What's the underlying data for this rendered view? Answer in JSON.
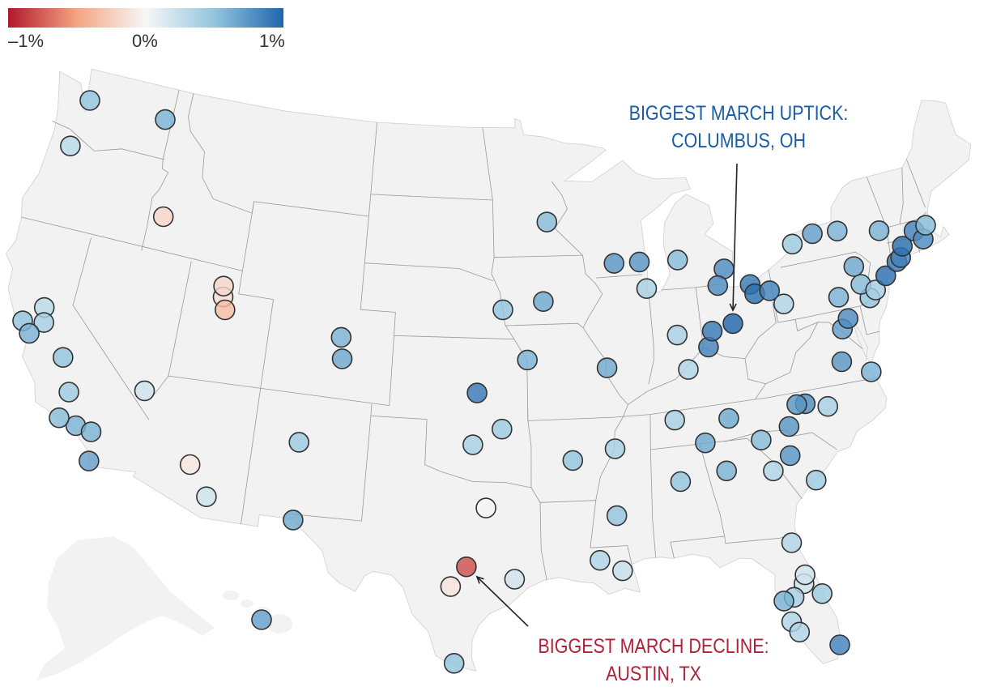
{
  "legend": {
    "min_label": "–1%",
    "mid_label": "0%",
    "max_label": "1%",
    "domain": [
      -1,
      0,
      1
    ],
    "colors": [
      "#b2182b",
      "#f4a582",
      "#f7f7f7",
      "#92c5de",
      "#2166ac"
    ]
  },
  "annotations": {
    "uptick": {
      "line1": "BIGGEST MARCH UPTICK:",
      "line2": "COLUMBUS, OH",
      "color": "#1a5da6"
    },
    "decline": {
      "line1": "BIGGEST MARCH DECLINE:",
      "line2": "AUSTIN, TX",
      "color": "#b3203a"
    }
  },
  "map": {
    "land_color": "#f2f2f2",
    "border_color": "#999999"
  },
  "metros": [
    {
      "name": "Seattle",
      "lon": -122.33,
      "lat": 47.61,
      "value": 0.5
    },
    {
      "name": "Spokane",
      "lon": -117.43,
      "lat": 47.66,
      "value": 0.6
    },
    {
      "name": "Portland",
      "lon": -122.68,
      "lat": 45.52,
      "value": 0.3
    },
    {
      "name": "Boise",
      "lon": -116.2,
      "lat": 43.62,
      "value": -0.2
    },
    {
      "name": "Salt Lake City",
      "lon": -111.89,
      "lat": 40.76,
      "value": -0.15
    },
    {
      "name": "Ogden",
      "lon": -111.97,
      "lat": 41.22,
      "value": -0.2
    },
    {
      "name": "Provo",
      "lon": -111.66,
      "lat": 40.23,
      "value": -0.35
    },
    {
      "name": "Sacramento",
      "lon": -121.49,
      "lat": 38.58,
      "value": 0.3
    },
    {
      "name": "Stockton",
      "lon": -121.29,
      "lat": 37.96,
      "value": 0.4
    },
    {
      "name": "San Francisco",
      "lon": -122.42,
      "lat": 37.77,
      "value": 0.5
    },
    {
      "name": "San Jose",
      "lon": -121.89,
      "lat": 37.34,
      "value": 0.6
    },
    {
      "name": "Fresno",
      "lon": -119.79,
      "lat": 36.74,
      "value": 0.5
    },
    {
      "name": "Bakersfield",
      "lon": -119.02,
      "lat": 35.37,
      "value": 0.45
    },
    {
      "name": "Los Angeles",
      "lon": -118.24,
      "lat": 34.05,
      "value": 0.6
    },
    {
      "name": "Riverside",
      "lon": -117.4,
      "lat": 33.95,
      "value": 0.6
    },
    {
      "name": "Oxnard",
      "lon": -119.18,
      "lat": 34.2,
      "value": 0.55
    },
    {
      "name": "San Diego",
      "lon": -117.16,
      "lat": 32.72,
      "value": 0.7
    },
    {
      "name": "Las Vegas",
      "lon": -115.14,
      "lat": 36.17,
      "value": 0.2
    },
    {
      "name": "Phoenix",
      "lon": -112.07,
      "lat": 33.45,
      "value": -0.1
    },
    {
      "name": "Tucson",
      "lon": -110.97,
      "lat": 32.22,
      "value": 0.2
    },
    {
      "name": "Denver",
      "lon": -104.99,
      "lat": 39.74,
      "value": 0.6
    },
    {
      "name": "Colorado Springs",
      "lon": -104.82,
      "lat": 38.83,
      "value": 0.65
    },
    {
      "name": "Albuquerque",
      "lon": -106.65,
      "lat": 35.08,
      "value": 0.45
    },
    {
      "name": "El Paso",
      "lon": -106.49,
      "lat": 31.76,
      "value": 0.65
    },
    {
      "name": "Wichita",
      "lon": -97.34,
      "lat": 37.69,
      "value": 0.9
    },
    {
      "name": "Oklahoma City",
      "lon": -97.52,
      "lat": 35.47,
      "value": 0.4
    },
    {
      "name": "Tulsa",
      "lon": -95.99,
      "lat": 36.15,
      "value": 0.45
    },
    {
      "name": "Dallas",
      "lon": -96.8,
      "lat": 32.78,
      "value": 0.02
    },
    {
      "name": "Austin",
      "lon": -97.74,
      "lat": 30.27,
      "value": -0.8
    },
    {
      "name": "San Antonio",
      "lon": -98.49,
      "lat": 29.42,
      "value": -0.12
    },
    {
      "name": "Houston",
      "lon": -95.37,
      "lat": 29.76,
      "value": 0.2
    },
    {
      "name": "McAllen",
      "lon": -98.23,
      "lat": 26.2,
      "value": 0.5
    },
    {
      "name": "Omaha",
      "lon": -95.93,
      "lat": 41.26,
      "value": 0.5
    },
    {
      "name": "Des Moines",
      "lon": -93.61,
      "lat": 41.59,
      "value": 0.65
    },
    {
      "name": "Minneapolis",
      "lon": -93.27,
      "lat": 44.98,
      "value": 0.55
    },
    {
      "name": "Kansas City",
      "lon": -94.58,
      "lat": 39.1,
      "value": 0.6
    },
    {
      "name": "Little Rock",
      "lon": -92.29,
      "lat": 34.75,
      "value": 0.5
    },
    {
      "name": "Madison",
      "lon": -89.4,
      "lat": 43.07,
      "value": 0.75
    },
    {
      "name": "Milwaukee",
      "lon": -87.91,
      "lat": 43.04,
      "value": 0.75
    },
    {
      "name": "Chicago",
      "lon": -87.63,
      "lat": 41.88,
      "value": 0.4
    },
    {
      "name": "St. Louis",
      "lon": -90.2,
      "lat": 38.63,
      "value": 0.65
    },
    {
      "name": "Memphis",
      "lon": -90.05,
      "lat": 35.15,
      "value": 0.4
    },
    {
      "name": "Jackson",
      "lon": -90.18,
      "lat": 32.3,
      "value": 0.5
    },
    {
      "name": "Baton Rouge",
      "lon": -91.15,
      "lat": 30.45,
      "value": 0.35
    },
    {
      "name": "New Orleans",
      "lon": -90.07,
      "lat": 29.95,
      "value": 0.25
    },
    {
      "name": "Grand Rapids",
      "lon": -85.67,
      "lat": 42.96,
      "value": 0.55
    },
    {
      "name": "Detroit",
      "lon": -83.05,
      "lat": 42.33,
      "value": 0.8
    },
    {
      "name": "Toledo",
      "lon": -83.54,
      "lat": 41.66,
      "value": 0.8
    },
    {
      "name": "Indianapolis",
      "lon": -86.16,
      "lat": 39.77,
      "value": 0.4
    },
    {
      "name": "Louisville",
      "lon": -85.76,
      "lat": 38.25,
      "value": 0.35
    },
    {
      "name": "Cincinnati",
      "lon": -84.51,
      "lat": 39.1,
      "value": 0.85
    },
    {
      "name": "Dayton",
      "lon": -84.19,
      "lat": 39.76,
      "value": 0.9
    },
    {
      "name": "Columbus",
      "lon": -82.99,
      "lat": 39.96,
      "value": 1.0
    },
    {
      "name": "Cleveland",
      "lon": -81.69,
      "lat": 41.5,
      "value": 0.9
    },
    {
      "name": "Akron",
      "lon": -81.52,
      "lat": 41.08,
      "value": 0.95
    },
    {
      "name": "Youngstown",
      "lon": -80.65,
      "lat": 41.1,
      "value": 0.85
    },
    {
      "name": "Pittsburgh",
      "lon": -79.99,
      "lat": 40.44,
      "value": 0.35
    },
    {
      "name": "Nashville",
      "lon": -86.78,
      "lat": 36.16,
      "value": 0.4
    },
    {
      "name": "Knoxville",
      "lon": -83.92,
      "lat": 35.96,
      "value": 0.65
    },
    {
      "name": "Chattanooga",
      "lon": -85.31,
      "lat": 35.05,
      "value": 0.65
    },
    {
      "name": "Birmingham",
      "lon": -86.8,
      "lat": 33.52,
      "value": 0.5
    },
    {
      "name": "Atlanta",
      "lon": -84.39,
      "lat": 33.75,
      "value": 0.6
    },
    {
      "name": "Greenville",
      "lon": -82.39,
      "lat": 34.85,
      "value": 0.55
    },
    {
      "name": "Columbia",
      "lon": -81.03,
      "lat": 34.0,
      "value": 0.75
    },
    {
      "name": "Charlotte",
      "lon": -80.84,
      "lat": 35.23,
      "value": 0.75
    },
    {
      "name": "Charleston",
      "lon": -79.93,
      "lat": 32.78,
      "value": 0.45
    },
    {
      "name": "Greensboro",
      "lon": -79.79,
      "lat": 36.07,
      "value": 0.8
    },
    {
      "name": "Winston-Salem",
      "lon": -80.24,
      "lat": 36.1,
      "value": 0.75
    },
    {
      "name": "Raleigh",
      "lon": -78.64,
      "lat": 35.78,
      "value": 0.4
    },
    {
      "name": "Augusta",
      "lon": -82.01,
      "lat": 33.47,
      "value": 0.35
    },
    {
      "name": "Richmond",
      "lon": -77.44,
      "lat": 37.54,
      "value": 0.75
    },
    {
      "name": "Virginia Beach",
      "lon": -76.0,
      "lat": 36.85,
      "value": 0.6
    },
    {
      "name": "Washington",
      "lon": -77.04,
      "lat": 38.9,
      "value": 0.7
    },
    {
      "name": "Baltimore",
      "lon": -76.61,
      "lat": 39.29,
      "value": 0.8
    },
    {
      "name": "Harrisburg",
      "lon": -76.88,
      "lat": 40.27,
      "value": 0.6
    },
    {
      "name": "Philadelphia",
      "lon": -75.17,
      "lat": 39.95,
      "value": 0.5
    },
    {
      "name": "Allentown",
      "lon": -75.49,
      "lat": 40.6,
      "value": 0.55
    },
    {
      "name": "Scranton",
      "lon": -75.66,
      "lat": 41.41,
      "value": 0.65
    },
    {
      "name": "Trenton",
      "lon": -74.76,
      "lat": 40.22,
      "value": 0.4
    },
    {
      "name": "Buffalo",
      "lon": -78.88,
      "lat": 42.89,
      "value": 0.45
    },
    {
      "name": "Rochester",
      "lon": -77.61,
      "lat": 43.16,
      "value": 0.7
    },
    {
      "name": "Syracuse",
      "lon": -76.15,
      "lat": 43.05,
      "value": 0.6
    },
    {
      "name": "Albany",
      "lon": -73.76,
      "lat": 42.65,
      "value": 0.6
    },
    {
      "name": "New York",
      "lon": -74.01,
      "lat": 40.71,
      "value": 0.95
    },
    {
      "name": "Bridgeport",
      "lon": -73.2,
      "lat": 41.18,
      "value": 0.9
    },
    {
      "name": "New Haven",
      "lon": -72.93,
      "lat": 41.31,
      "value": 0.85
    },
    {
      "name": "Hartford",
      "lon": -72.68,
      "lat": 41.76,
      "value": 0.95
    },
    {
      "name": "Worcester",
      "lon": -71.8,
      "lat": 42.26,
      "value": 0.85
    },
    {
      "name": "Providence",
      "lon": -71.41,
      "lat": 41.82,
      "value": 0.8
    },
    {
      "name": "Boston",
      "lon": -71.06,
      "lat": 42.36,
      "value": 0.55
    },
    {
      "name": "Jacksonville",
      "lon": -81.66,
      "lat": 30.33,
      "value": 0.35
    },
    {
      "name": "Orlando",
      "lon": -81.38,
      "lat": 28.54,
      "value": 0.2
    },
    {
      "name": "Lakeland",
      "lon": -81.95,
      "lat": 28.04,
      "value": 0.4
    },
    {
      "name": "Deltona",
      "lon": -81.26,
      "lat": 28.9,
      "value": 0.2
    },
    {
      "name": "Tampa",
      "lon": -82.46,
      "lat": 27.95,
      "value": 0.6
    },
    {
      "name": "Palm Bay",
      "lon": -80.6,
      "lat": 28.0,
      "value": 0.45
    },
    {
      "name": "North Port",
      "lon": -82.24,
      "lat": 27.04,
      "value": 0.35
    },
    {
      "name": "Cape Coral",
      "lon": -81.95,
      "lat": 26.56,
      "value": 0.35
    },
    {
      "name": "Miami",
      "lon": -80.19,
      "lat": 25.76,
      "value": 0.85
    },
    {
      "name": "Anchorage",
      "lon": -149.9,
      "lat": 61.2,
      "value": 0.7
    }
  ]
}
